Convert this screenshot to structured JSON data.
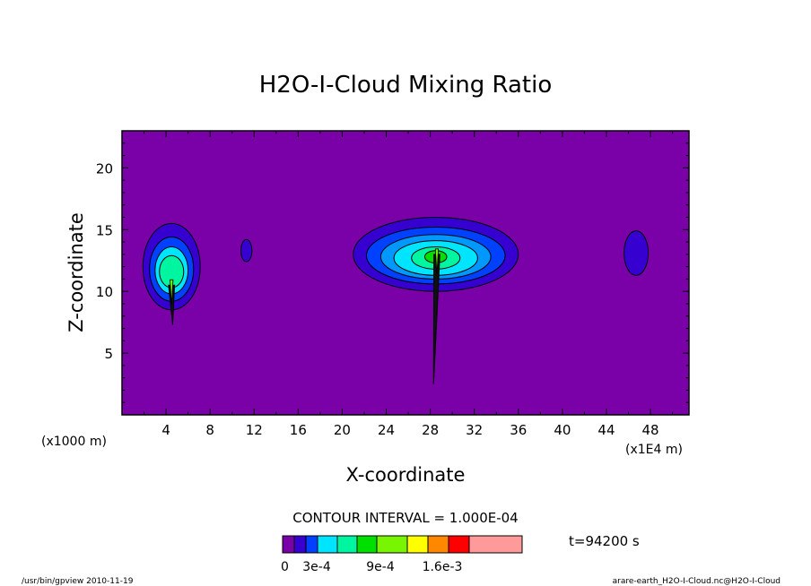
{
  "chart_data": {
    "type": "heatmap",
    "title": "H2O-I-Cloud Mixing Ratio",
    "xlabel": "X-coordinate",
    "ylabel": "Z-coordinate",
    "x_unit_left": "(x1000 m)",
    "x_unit_right": "(x1E4 m)",
    "xlim": [
      0,
      51.5
    ],
    "ylim": [
      0,
      23
    ],
    "x_ticks": [
      4,
      8,
      12,
      16,
      20,
      24,
      28,
      32,
      36,
      40,
      44,
      48
    ],
    "y_ticks": [
      5,
      10,
      15,
      20
    ],
    "contour_interval_label": "CONTOUR INTERVAL = 1.000E-04",
    "time_label": "t=94200 s",
    "colorbar": {
      "labels": [
        {
          "text": "0",
          "value": 0
        },
        {
          "text": "3e-4",
          "value": 0.0003
        },
        {
          "text": "9e-4",
          "value": 0.0009
        },
        {
          "text": "1.6e-3",
          "value": 0.0016
        }
      ],
      "levels": [
        0,
        0.0001,
        0.0002,
        0.0003,
        0.0004,
        0.0005,
        0.0006,
        0.0007,
        0.0008,
        0.0009,
        0.001,
        0.0012,
        0.0016,
        0.0025
      ],
      "colors": [
        "#7a00a8",
        "#3500d0",
        "#0040ff",
        "#0097ff",
        "#00e5ff",
        "#00f5a0",
        "#00e000",
        "#78f500",
        "#ffff00",
        "#ff8800",
        "#ff0000",
        "#ff9a9a"
      ]
    },
    "background_color": "#7a00a8",
    "contour_regions": [
      {
        "name": "left-cloud",
        "center": [
          4.5,
          12.0
        ],
        "levels": [
          {
            "rx": 2.6,
            "ry": 3.5,
            "dy": 0.0,
            "color": "#3500d0"
          },
          {
            "rx": 2.0,
            "ry": 2.6,
            "dy": -0.2,
            "color": "#0040ff"
          },
          {
            "rx": 1.5,
            "ry": 1.9,
            "dy": -0.3,
            "color": "#00e5ff"
          },
          {
            "rx": 1.1,
            "ry": 1.3,
            "dy": -0.4,
            "color": "#00f5a0"
          }
        ]
      },
      {
        "name": "small-cloud",
        "center": [
          11.3,
          13.3
        ],
        "levels": [
          {
            "rx": 0.5,
            "ry": 0.9,
            "dy": 0.0,
            "color": "#3500d0"
          }
        ]
      },
      {
        "name": "central-cloud",
        "center": [
          28.5,
          13.0
        ],
        "levels": [
          {
            "rx": 7.5,
            "ry": 3.0,
            "dy": 0.0,
            "color": "#3500d0"
          },
          {
            "rx": 6.3,
            "ry": 2.3,
            "dy": -0.1,
            "color": "#0040ff"
          },
          {
            "rx": 5.0,
            "ry": 1.8,
            "dy": -0.2,
            "color": "#0097ff"
          },
          {
            "rx": 3.8,
            "ry": 1.4,
            "dy": -0.3,
            "color": "#00e5ff"
          },
          {
            "rx": 2.2,
            "ry": 0.9,
            "dy": -0.3,
            "color": "#00f5a0"
          },
          {
            "rx": 1.0,
            "ry": 0.5,
            "dy": -0.2,
            "color": "#00e000"
          }
        ]
      },
      {
        "name": "right-cloud",
        "center": [
          46.7,
          13.1
        ],
        "levels": [
          {
            "rx": 1.1,
            "ry": 1.8,
            "dy": 0.0,
            "color": "#3500d0"
          }
        ]
      }
    ],
    "spikes": [
      {
        "name": "left-spike",
        "base": [
          4.5,
          10.5
        ],
        "tip": [
          4.6,
          7.3
        ],
        "width": 0.55
      },
      {
        "name": "central-spike",
        "base": [
          28.6,
          13.0
        ],
        "tip": [
          28.3,
          2.5
        ],
        "width": 0.55
      }
    ]
  },
  "footer": {
    "left": "/usr/bin/gpview   2010-11-19",
    "right": "arare-earth_H2O-I-Cloud.nc@H2O-I-Cloud"
  }
}
